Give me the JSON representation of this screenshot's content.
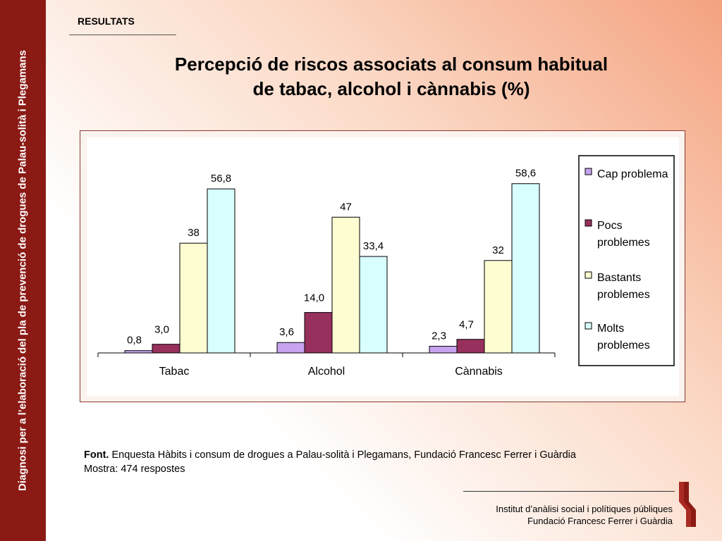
{
  "sidebar": {
    "text": "Diagnosi per a l’elaboració del pla de prevenció de drogues de Palau-solità i Plegamans"
  },
  "header": {
    "section": "RESULTATS"
  },
  "title": {
    "line1": "Percepció de riscos associats al consum habitual",
    "line2": "de tabac, alcohol i cànnabis (%)"
  },
  "chart_data": {
    "type": "bar",
    "categories": [
      "Tabac",
      "Alcohol",
      "Cànnabis"
    ],
    "series": [
      {
        "name": "Cap problema",
        "values": [
          0.8,
          3.6,
          2.3
        ],
        "labels": [
          "0,8",
          "3,6",
          "2,3"
        ],
        "color": "#c7a3f0"
      },
      {
        "name": "Pocs problemes",
        "values": [
          3.0,
          14.0,
          4.7
        ],
        "labels": [
          "3,0",
          "14,0",
          "4,7"
        ],
        "color": "#98305d"
      },
      {
        "name": "Bastants problemes",
        "values": [
          38,
          47,
          32
        ],
        "labels": [
          "38",
          "47",
          "32"
        ],
        "color": "#fefdd2"
      },
      {
        "name": "Molts problemes",
        "values": [
          56.8,
          33.4,
          58.6
        ],
        "labels": [
          "56,8",
          "33,4",
          "58,6"
        ],
        "color": "#d8fefe"
      }
    ],
    "legend_lines": [
      [
        "Cap problema"
      ],
      [
        "Pocs",
        "problemes"
      ],
      [
        "Bastants",
        "problemes"
      ],
      [
        "Molts",
        "problemes"
      ]
    ],
    "title": "",
    "xlabel": "",
    "ylabel": "",
    "ylim": [
      0,
      60
    ],
    "grid": false,
    "legend_position": "right"
  },
  "source": {
    "label": "Font.",
    "text": " Enquesta Hàbits i consum de drogues a Palau-solità i Plegamans, Fundació Francesc Ferrer i Guàrdia",
    "sample": "Mostra: 474 respostes"
  },
  "footer": {
    "line1": "Institut d’anàlisi social i polítiques públiques",
    "line2": "Fundació Francesc Ferrer i Guàrdia"
  },
  "colors": {
    "sidebar": "#8b1a14",
    "accent": "#f4a27f"
  }
}
